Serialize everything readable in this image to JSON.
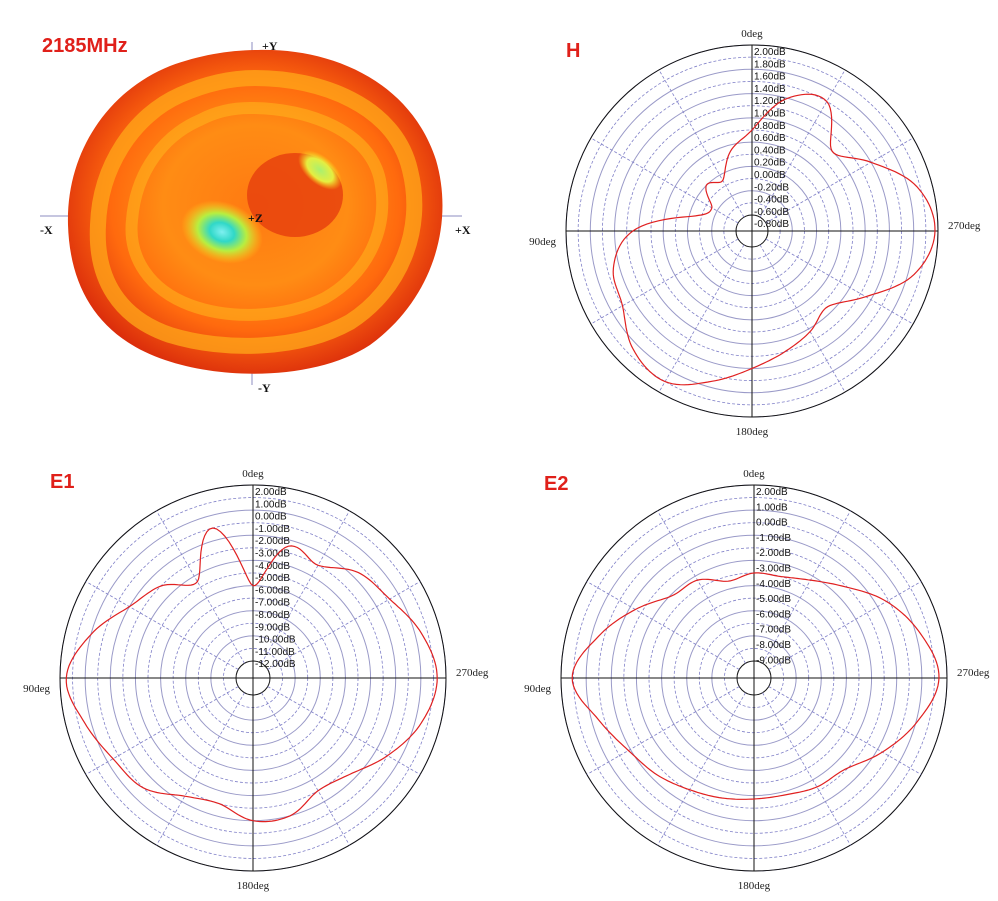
{
  "frequency_label": "2185MHz",
  "pattern3d": {
    "axis_labels": {
      "py": "+Y",
      "ny": "-Y",
      "px": "+X",
      "nx": "-X",
      "pz": "+Z"
    },
    "colors": {
      "outer": "#e33a10",
      "mid": "#ff9a10",
      "inner": "#ffd21a",
      "hot": "#20d0c0"
    }
  },
  "chart_data": [
    {
      "type": "polar",
      "title": "H",
      "angle_labels": [
        "0deg",
        "90deg",
        "180deg",
        "270deg"
      ],
      "radial_tick_labels": [
        "2.00dB",
        "1.80dB",
        "1.60dB",
        "1.40dB",
        "1.20dB",
        "1.00dB",
        "0.80dB",
        "0.60dB",
        "0.40dB",
        "0.20dB",
        "0.00dB",
        "-0.20dB",
        "-0.40dB",
        "-0.60dB",
        "-0.80dB"
      ],
      "r_range_db": [
        -0.8,
        2.0
      ],
      "series": [
        {
          "color": "#e02020",
          "angles_deg": [
            0,
            15,
            30,
            45,
            60,
            75,
            90,
            105,
            120,
            135,
            150,
            165,
            180,
            195,
            210,
            225,
            240,
            255,
            270,
            285,
            300,
            315,
            330,
            345,
            360
          ],
          "values_db": [
            0.6,
            0.3,
            -0.1,
            0.0,
            -0.3,
            -0.1,
            0.9,
            1.3,
            1.4,
            1.7,
            1.8,
            1.5,
            1.2,
            1.0,
            0.85,
            0.7,
            1.1,
            1.7,
            1.95,
            1.75,
            1.2,
            0.8,
            1.4,
            1.2,
            0.6
          ]
        }
      ]
    },
    {
      "type": "polar",
      "title": "E1",
      "angle_labels": [
        "0deg",
        "90deg",
        "180deg",
        "270deg"
      ],
      "radial_tick_labels": [
        "2.00dB",
        "1.00dB",
        "0.00dB",
        "-1.00dB",
        "-2.00dB",
        "-3.00dB",
        "-4.00dB",
        "-5.00dB",
        "-6.00dB",
        "-7.00dB",
        "-8.00dB",
        "-9.00dB",
        "-10.00dB",
        "-11.00dB",
        "-12.00dB"
      ],
      "r_range_db": [
        -12,
        2
      ],
      "series": [
        {
          "color": "#e02020",
          "angles_deg": [
            0,
            15,
            30,
            45,
            60,
            75,
            90,
            105,
            120,
            135,
            150,
            165,
            180,
            195,
            210,
            225,
            240,
            255,
            270,
            285,
            300,
            315,
            330,
            345,
            360
          ],
          "values_db": [
            -6.0,
            -1.0,
            -4.5,
            -3.0,
            -2.0,
            0.0,
            1.5,
            0.5,
            -0.5,
            -1.0,
            -2.5,
            -3.0,
            -2.0,
            -2.0,
            -3.0,
            -2.5,
            -1.0,
            0.5,
            1.3,
            0.5,
            -0.8,
            -1.5,
            -3.0,
            -2.5,
            -6.0
          ]
        }
      ]
    },
    {
      "type": "polar",
      "title": "E2",
      "angle_labels": [
        "0deg",
        "90deg",
        "180deg",
        "270deg"
      ],
      "radial_tick_labels": [
        "2.00dB",
        "1.00dB",
        "0.00dB",
        "-1.00dB",
        "-2.00dB",
        "-3.00dB",
        "-4.00dB",
        "-5.00dB",
        "-6.00dB",
        "-7.00dB",
        "-8.00dB",
        "-9.00dB"
      ],
      "r_range_db": [
        -9,
        2
      ],
      "series": [
        {
          "color": "#e02020",
          "angles_deg": [
            0,
            15,
            30,
            45,
            60,
            75,
            90,
            105,
            120,
            135,
            150,
            165,
            180,
            195,
            210,
            225,
            240,
            255,
            270,
            285,
            300,
            315,
            330,
            345,
            360
          ],
          "values_db": [
            -3.5,
            -3.8,
            -3.0,
            -2.8,
            -1.5,
            0.0,
            1.3,
            0.0,
            -1.0,
            -1.5,
            -2.0,
            -2.3,
            -2.5,
            -2.5,
            -2.2,
            -2.0,
            -0.8,
            0.5,
            1.5,
            0.7,
            -0.5,
            -2.0,
            -3.0,
            -3.5,
            -3.5
          ]
        }
      ]
    }
  ]
}
